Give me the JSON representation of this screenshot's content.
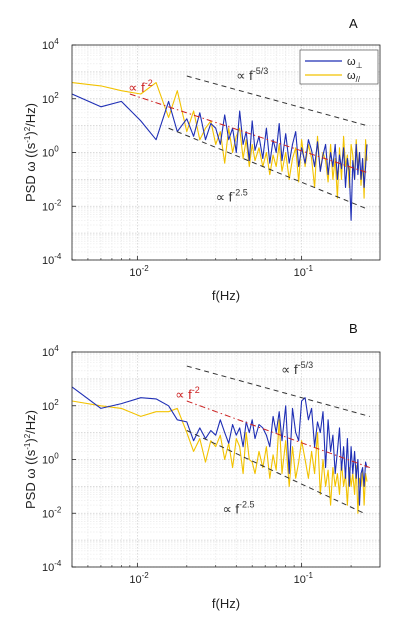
{
  "chart_data": [
    {
      "type": "line",
      "panel_label": "A",
      "xlabel": "f(Hz)",
      "ylabel": "PSD  ω  ((s-1)2/Hz)",
      "ylabel_parts": [
        "PSD  ω  ((s",
        "-1",
        ")",
        "2",
        "/Hz)"
      ],
      "x_scale": "log",
      "y_scale": "log",
      "xlim": [
        0.004,
        0.3
      ],
      "ylim": [
        0.0001,
        10000
      ],
      "xticks": [
        {
          "base": "10",
          "exp": "-2"
        },
        {
          "base": "10",
          "exp": "-1"
        }
      ],
      "yticks": [
        {
          "base": "10",
          "exp": "-4"
        },
        {
          "base": "10",
          "exp": "-2"
        },
        {
          "base": "10",
          "exp": "0"
        },
        {
          "base": "10",
          "exp": "2"
        },
        {
          "base": "10",
          "exp": "4"
        }
      ],
      "grid": true,
      "legend": {
        "position": "top-right",
        "entries": [
          {
            "text": "ω",
            "sub": "⊥",
            "color": "#1f2fb5"
          },
          {
            "text": "ω",
            "sub": "//",
            "color": "#f2c200"
          }
        ]
      },
      "series": [
        {
          "name": "ω⊥",
          "color": "#1f2fb5",
          "x": [
            0.004,
            0.006,
            0.008,
            0.0105,
            0.013,
            0.0155,
            0.0175,
            0.02,
            0.022,
            0.024,
            0.026,
            0.028,
            0.03,
            0.032,
            0.034,
            0.036,
            0.038,
            0.04,
            0.042,
            0.044,
            0.046,
            0.048,
            0.05,
            0.052,
            0.055,
            0.058,
            0.061,
            0.064,
            0.067,
            0.07,
            0.073,
            0.076,
            0.08,
            0.084,
            0.088,
            0.092,
            0.096,
            0.1,
            0.105,
            0.11,
            0.115,
            0.12,
            0.125,
            0.13,
            0.135,
            0.14,
            0.145,
            0.15,
            0.155,
            0.16,
            0.165,
            0.17,
            0.175,
            0.18,
            0.185,
            0.19,
            0.195,
            0.2,
            0.205,
            0.21,
            0.215,
            0.22,
            0.225,
            0.23,
            0.235,
            0.24,
            0.245,
            0.25
          ],
          "y": [
            150,
            50,
            80,
            15,
            3,
            80,
            6,
            18,
            4,
            30,
            3,
            12,
            8,
            2,
            25,
            3,
            8,
            1,
            35,
            2,
            6,
            0.5,
            15,
            1.2,
            4,
            0.6,
            8,
            0.4,
            3,
            1,
            12,
            0.5,
            5,
            0.4,
            2,
            6,
            0.3,
            1.5,
            0.4,
            3,
            1.2,
            0.3,
            2.5,
            0.2,
            0.8,
            2,
            0.15,
            1,
            0.3,
            2,
            0.1,
            0.8,
            0.25,
            1.5,
            0.05,
            0.6,
            0.2,
            0.003,
            0.5,
            0.1,
            2,
            0.15,
            1,
            0.1,
            0.6,
            0.05,
            0.3,
            2
          ]
        },
        {
          "name": "ω//",
          "color": "#f2c200",
          "x": [
            0.004,
            0.006,
            0.008,
            0.0105,
            0.013,
            0.0155,
            0.0175,
            0.02,
            0.022,
            0.024,
            0.026,
            0.028,
            0.03,
            0.032,
            0.034,
            0.036,
            0.038,
            0.04,
            0.042,
            0.044,
            0.046,
            0.048,
            0.05,
            0.052,
            0.055,
            0.058,
            0.061,
            0.064,
            0.067,
            0.07,
            0.073,
            0.076,
            0.08,
            0.084,
            0.088,
            0.092,
            0.096,
            0.1,
            0.105,
            0.11,
            0.115,
            0.12,
            0.125,
            0.13,
            0.135,
            0.14,
            0.145,
            0.15,
            0.155,
            0.16,
            0.165,
            0.17,
            0.175,
            0.18,
            0.185,
            0.19,
            0.195,
            0.2,
            0.205,
            0.21,
            0.215,
            0.22,
            0.225,
            0.23,
            0.235,
            0.24,
            0.245,
            0.25
          ],
          "y": [
            400,
            300,
            200,
            150,
            400,
            20,
            200,
            6,
            35,
            3,
            8,
            15,
            2,
            6,
            0.4,
            8,
            1,
            4,
            8,
            0.6,
            3,
            0.3,
            2,
            0.5,
            1.5,
            0.3,
            1,
            0.15,
            0.8,
            0.3,
            2,
            0.2,
            1,
            0.1,
            0.6,
            1.5,
            0.08,
            3,
            0.3,
            2,
            0.6,
            0.05,
            4,
            0.2,
            1,
            0.5,
            0.08,
            2,
            0.1,
            0.6,
            0.02,
            1.5,
            0.1,
            4,
            0.3,
            0.8,
            0.05,
            2,
            0.8,
            0.1,
            3,
            0.3,
            1,
            0.06,
            0.5,
            0.02,
            3,
            0.5
          ]
        }
      ],
      "reference_lines": [
        {
          "label_prefix": "∝ f",
          "exponent": "-2",
          "color": "#cc2222",
          "dash": "dash-dot",
          "x": [
            0.009,
            0.25
          ],
          "y": [
            150,
            0.18
          ],
          "label_anchor_x": 0.0088,
          "label_anchor_y": 180
        },
        {
          "label_prefix": "∝ f",
          "exponent": "-5/3",
          "color": "#333333",
          "dash": "dashed",
          "x": [
            0.02,
            0.25
          ],
          "y": [
            700,
            10
          ],
          "label_anchor_x": 0.04,
          "label_anchor_y": 500
        },
        {
          "label_prefix": "∝ f",
          "exponent": "-2.5",
          "color": "#333333",
          "dash": "dashed",
          "x": [
            0.0155,
            0.25
          ],
          "y": [
            8,
            0.008
          ],
          "label_anchor_x": 0.03,
          "label_anchor_y": 0.015
        }
      ]
    },
    {
      "type": "line",
      "panel_label": "B",
      "xlabel": "f(Hz)",
      "ylabel": "PSD  ω  ((s-1)2/Hz)",
      "ylabel_parts": [
        "PSD  ω  ((s",
        "-1",
        ")",
        "2",
        "/Hz)"
      ],
      "x_scale": "log",
      "y_scale": "log",
      "xlim": [
        0.004,
        0.3
      ],
      "ylim": [
        0.0001,
        10000
      ],
      "xticks": [
        {
          "base": "10",
          "exp": "-2"
        },
        {
          "base": "10",
          "exp": "-1"
        }
      ],
      "yticks": [
        {
          "base": "10",
          "exp": "-4"
        },
        {
          "base": "10",
          "exp": "-2"
        },
        {
          "base": "10",
          "exp": "0"
        },
        {
          "base": "10",
          "exp": "2"
        },
        {
          "base": "10",
          "exp": "4"
        }
      ],
      "grid": true,
      "legend": null,
      "series": [
        {
          "name": "ω⊥",
          "color": "#1f2fb5",
          "x": [
            0.004,
            0.006,
            0.008,
            0.0105,
            0.013,
            0.0155,
            0.0175,
            0.02,
            0.022,
            0.024,
            0.026,
            0.028,
            0.03,
            0.032,
            0.034,
            0.036,
            0.038,
            0.04,
            0.042,
            0.044,
            0.046,
            0.048,
            0.05,
            0.052,
            0.055,
            0.058,
            0.061,
            0.064,
            0.067,
            0.07,
            0.073,
            0.076,
            0.08,
            0.084,
            0.088,
            0.092,
            0.096,
            0.1,
            0.105,
            0.11,
            0.115,
            0.12,
            0.125,
            0.13,
            0.135,
            0.14,
            0.145,
            0.15,
            0.155,
            0.16,
            0.165,
            0.17,
            0.175,
            0.18,
            0.185,
            0.19,
            0.195,
            0.2,
            0.205,
            0.21,
            0.215,
            0.22,
            0.225,
            0.23,
            0.235,
            0.24,
            0.245,
            0.25
          ],
          "y": [
            500,
            80,
            120,
            200,
            180,
            100,
            30,
            25,
            5,
            15,
            6,
            12,
            8,
            30,
            10,
            4,
            20,
            8,
            15,
            3,
            25,
            10,
            30,
            6,
            20,
            15,
            8,
            3,
            40,
            10,
            60,
            5,
            100,
            0.3,
            80,
            10,
            5,
            150,
            200,
            30,
            80,
            3,
            25,
            10,
            60,
            0.5,
            30,
            2,
            8,
            0.3,
            2,
            15,
            0.4,
            3,
            0.2,
            6,
            0.1,
            3,
            0.3,
            2,
            0.2,
            1,
            0.02,
            0.3,
            0.5,
            0.1,
            0.8,
            0.5
          ]
        },
        {
          "name": "ω//",
          "color": "#f2c200",
          "x": [
            0.004,
            0.006,
            0.008,
            0.0105,
            0.013,
            0.0155,
            0.0175,
            0.02,
            0.022,
            0.024,
            0.026,
            0.028,
            0.03,
            0.032,
            0.034,
            0.036,
            0.038,
            0.04,
            0.042,
            0.044,
            0.046,
            0.048,
            0.05,
            0.052,
            0.055,
            0.058,
            0.061,
            0.064,
            0.067,
            0.07,
            0.073,
            0.076,
            0.08,
            0.084,
            0.088,
            0.092,
            0.096,
            0.1,
            0.105,
            0.11,
            0.115,
            0.12,
            0.125,
            0.13,
            0.135,
            0.14,
            0.145,
            0.15,
            0.155,
            0.16,
            0.165,
            0.17,
            0.175,
            0.18,
            0.185,
            0.19,
            0.195,
            0.2,
            0.205,
            0.21,
            0.215,
            0.22,
            0.225,
            0.23,
            0.235,
            0.24,
            0.245,
            0.25
          ],
          "y": [
            150,
            100,
            80,
            40,
            60,
            60,
            80,
            10,
            2,
            6,
            0.8,
            5,
            3,
            8,
            1,
            4,
            0.5,
            6,
            3,
            0.3,
            10,
            1,
            0.8,
            0.3,
            2,
            0.5,
            3,
            0.2,
            1.5,
            0.4,
            30,
            0.3,
            5,
            0.1,
            3,
            0.2,
            0.8,
            5,
            1,
            0.2,
            2,
            0.3,
            10,
            0.05,
            1,
            0.1,
            0.4,
            0.02,
            0.5,
            0.1,
            0.3,
            0.05,
            0.8,
            0.1,
            0.3,
            0.02,
            0.5,
            0.1,
            0.3,
            0.05,
            0.6,
            0.01,
            0.2,
            0.1,
            0.4,
            0.02,
            0.3,
            0.15
          ]
        }
      ],
      "reference_lines": [
        {
          "label_prefix": "∝ f",
          "exponent": "-2",
          "color": "#cc2222",
          "dash": "dash-dot",
          "x": [
            0.02,
            0.26
          ],
          "y": [
            150,
            0.5
          ],
          "label_anchor_x": 0.017,
          "label_anchor_y": 180
        },
        {
          "label_prefix": "∝ f",
          "exponent": "-5/3",
          "color": "#333333",
          "dash": "dashed",
          "x": [
            0.02,
            0.26
          ],
          "y": [
            3000,
            40
          ],
          "label_anchor_x": 0.075,
          "label_anchor_y": 1500
        },
        {
          "label_prefix": "∝ f",
          "exponent": "-2.5",
          "color": "#333333",
          "dash": "dashed",
          "x": [
            0.02,
            0.24
          ],
          "y": [
            12,
            0.01
          ],
          "label_anchor_x": 0.033,
          "label_anchor_y": 0.01
        }
      ]
    }
  ]
}
